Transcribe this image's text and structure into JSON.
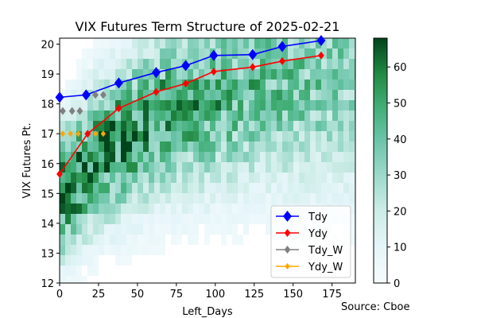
{
  "chart_data": {
    "type": "line",
    "title": "VIX Futures Term Structure of 2025-02-21",
    "xlabel": "Left_Days",
    "ylabel": "VIX Futures Pt.",
    "xlim": [
      0,
      190
    ],
    "ylim": [
      12,
      20.2
    ],
    "xticks": [
      "0",
      "25",
      "50",
      "75",
      "100",
      "125",
      "150",
      "175"
    ],
    "yticks": [
      "12",
      "13",
      "14",
      "15",
      "16",
      "17",
      "18",
      "19",
      "20"
    ],
    "source": "Source: Cboe",
    "colorbar": {
      "range": [
        0,
        68
      ],
      "ticks": [
        "0",
        "10",
        "20",
        "30",
        "40",
        "50",
        "60"
      ],
      "colormap": "BuGn"
    },
    "background": "hexbin density heatmap",
    "legend_position": "lower-right",
    "series": [
      {
        "name": "Tdy",
        "color": "#0000ff",
        "marker": "diamond-large",
        "points": [
          [
            0,
            18.22
          ],
          [
            17,
            18.3
          ],
          [
            38,
            18.7
          ],
          [
            62,
            19.05
          ],
          [
            81,
            19.28
          ],
          [
            99,
            19.62
          ],
          [
            124,
            19.65
          ],
          [
            143,
            19.92
          ],
          [
            168,
            20.12
          ]
        ]
      },
      {
        "name": "Ydy",
        "color": "#ff0000",
        "marker": "diamond",
        "points": [
          [
            0,
            15.65
          ],
          [
            18,
            17.0
          ],
          [
            38,
            17.85
          ],
          [
            62,
            18.4
          ],
          [
            81,
            18.68
          ],
          [
            99,
            19.08
          ],
          [
            124,
            19.23
          ],
          [
            143,
            19.43
          ],
          [
            168,
            19.62
          ]
        ]
      },
      {
        "name": "Tdy_W",
        "color": "#808080",
        "marker": "diamond",
        "lines": false,
        "points": [
          [
            2,
            17.76
          ],
          [
            8,
            17.76
          ],
          [
            13,
            17.76
          ],
          [
            23,
            18.3
          ],
          [
            28,
            18.3
          ]
        ]
      },
      {
        "name": "Ydy_W",
        "color": "#ffa500",
        "marker": "diamond-small",
        "lines": false,
        "points": [
          [
            2,
            17.0
          ],
          [
            7,
            17.0
          ],
          [
            12,
            17.0
          ],
          [
            23,
            17.0
          ],
          [
            28,
            17.0
          ]
        ]
      }
    ]
  }
}
